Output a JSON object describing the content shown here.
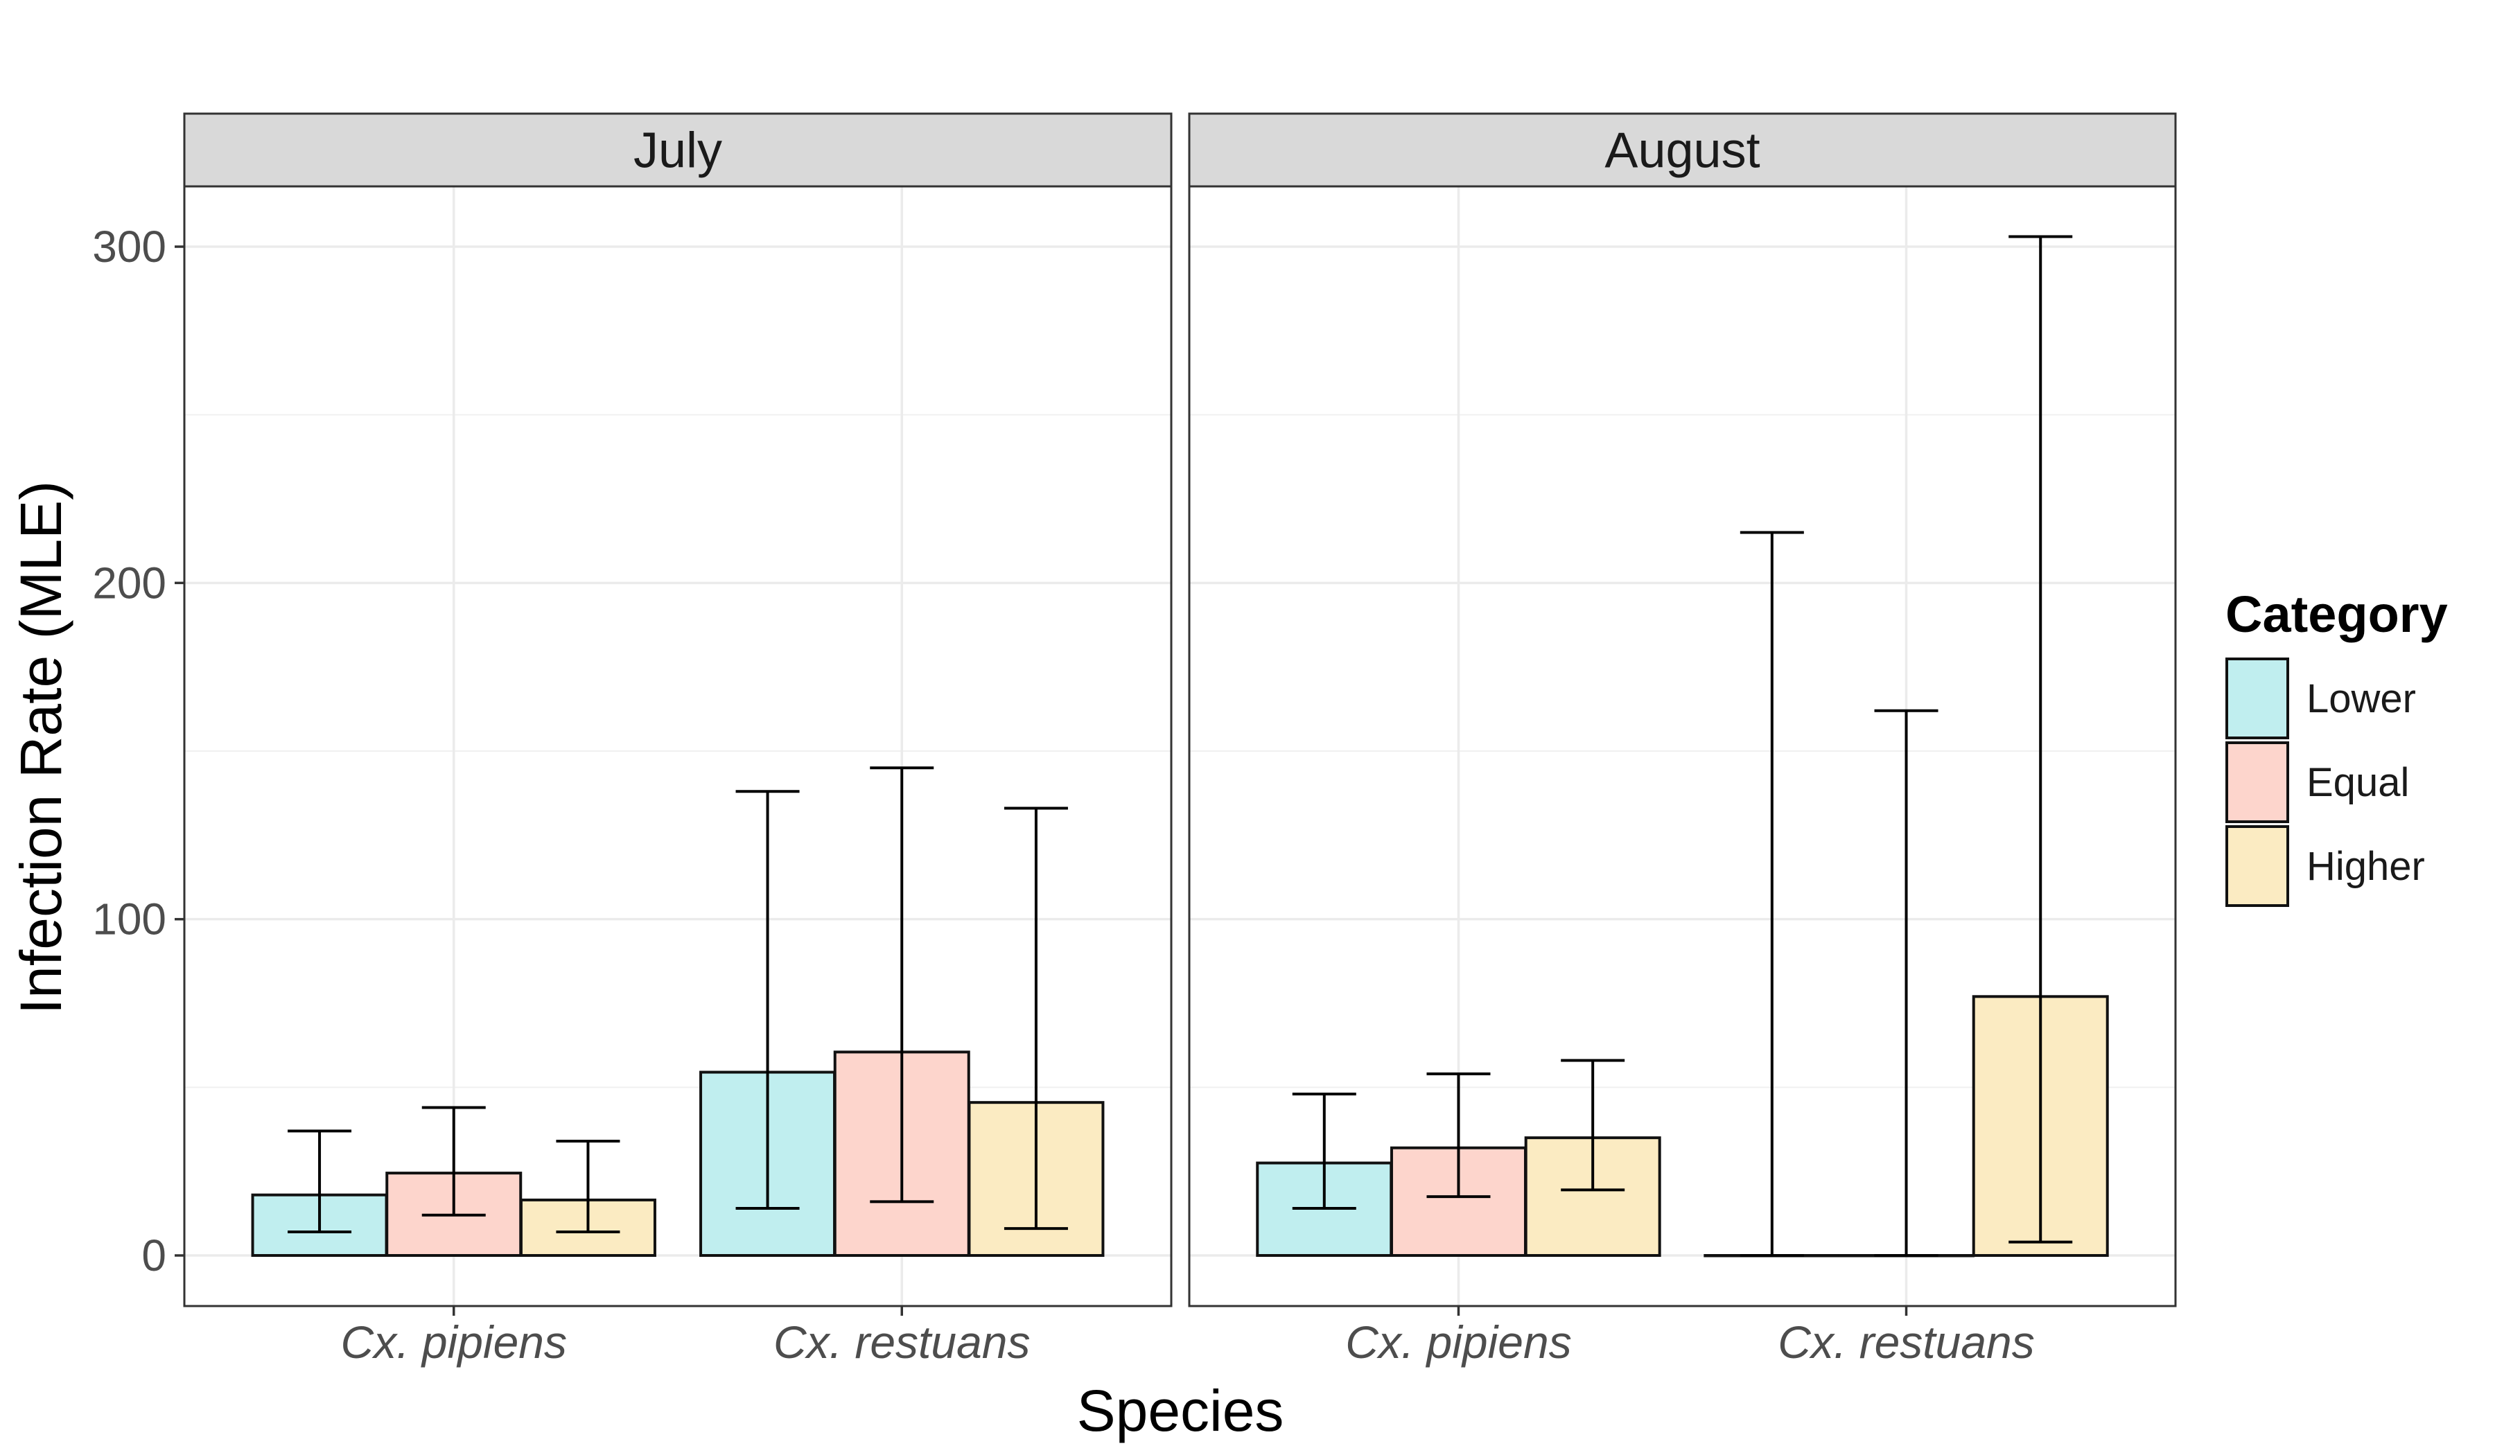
{
  "chart_data": {
    "type": "bar",
    "facets": [
      "July",
      "August"
    ],
    "categories": [
      "Cx. pipiens",
      "Cx. restuans"
    ],
    "xlabel": "Species",
    "ylabel": "Infection Rate (MLE)",
    "ylim": [
      -15,
      320
    ],
    "yticks": [
      0,
      100,
      200,
      300
    ],
    "grid": true,
    "legend": {
      "title": "Category",
      "position": "right",
      "entries": [
        "Lower",
        "Equal",
        "Higher"
      ]
    },
    "colors": {
      "Lower": "#c0eeef",
      "Equal": "#fdd5cc",
      "Higher": "#fbebc2"
    },
    "series": [
      {
        "name": "Lower",
        "data": {
          "July": [
            {
              "value": 18,
              "lower": 7,
              "upper": 37
            },
            {
              "value": 54.5,
              "lower": 14,
              "upper": 138
            }
          ],
          "August": [
            {
              "value": 27.5,
              "lower": 14,
              "upper": 48
            },
            {
              "value": 0,
              "lower": 0,
              "upper": 215
            }
          ]
        }
      },
      {
        "name": "Equal",
        "data": {
          "July": [
            {
              "value": 24.5,
              "lower": 12,
              "upper": 44
            },
            {
              "value": 60.5,
              "lower": 16,
              "upper": 145
            }
          ],
          "August": [
            {
              "value": 32,
              "lower": 17.5,
              "upper": 54
            },
            {
              "value": 0,
              "lower": 0,
              "upper": 162
            }
          ]
        }
      },
      {
        "name": "Higher",
        "data": {
          "July": [
            {
              "value": 16.5,
              "lower": 7,
              "upper": 34
            },
            {
              "value": 45.5,
              "lower": 8,
              "upper": 133
            }
          ],
          "August": [
            {
              "value": 35,
              "lower": 19.5,
              "upper": 58
            },
            {
              "value": 77,
              "lower": 4,
              "upper": 303
            }
          ]
        }
      }
    ]
  }
}
